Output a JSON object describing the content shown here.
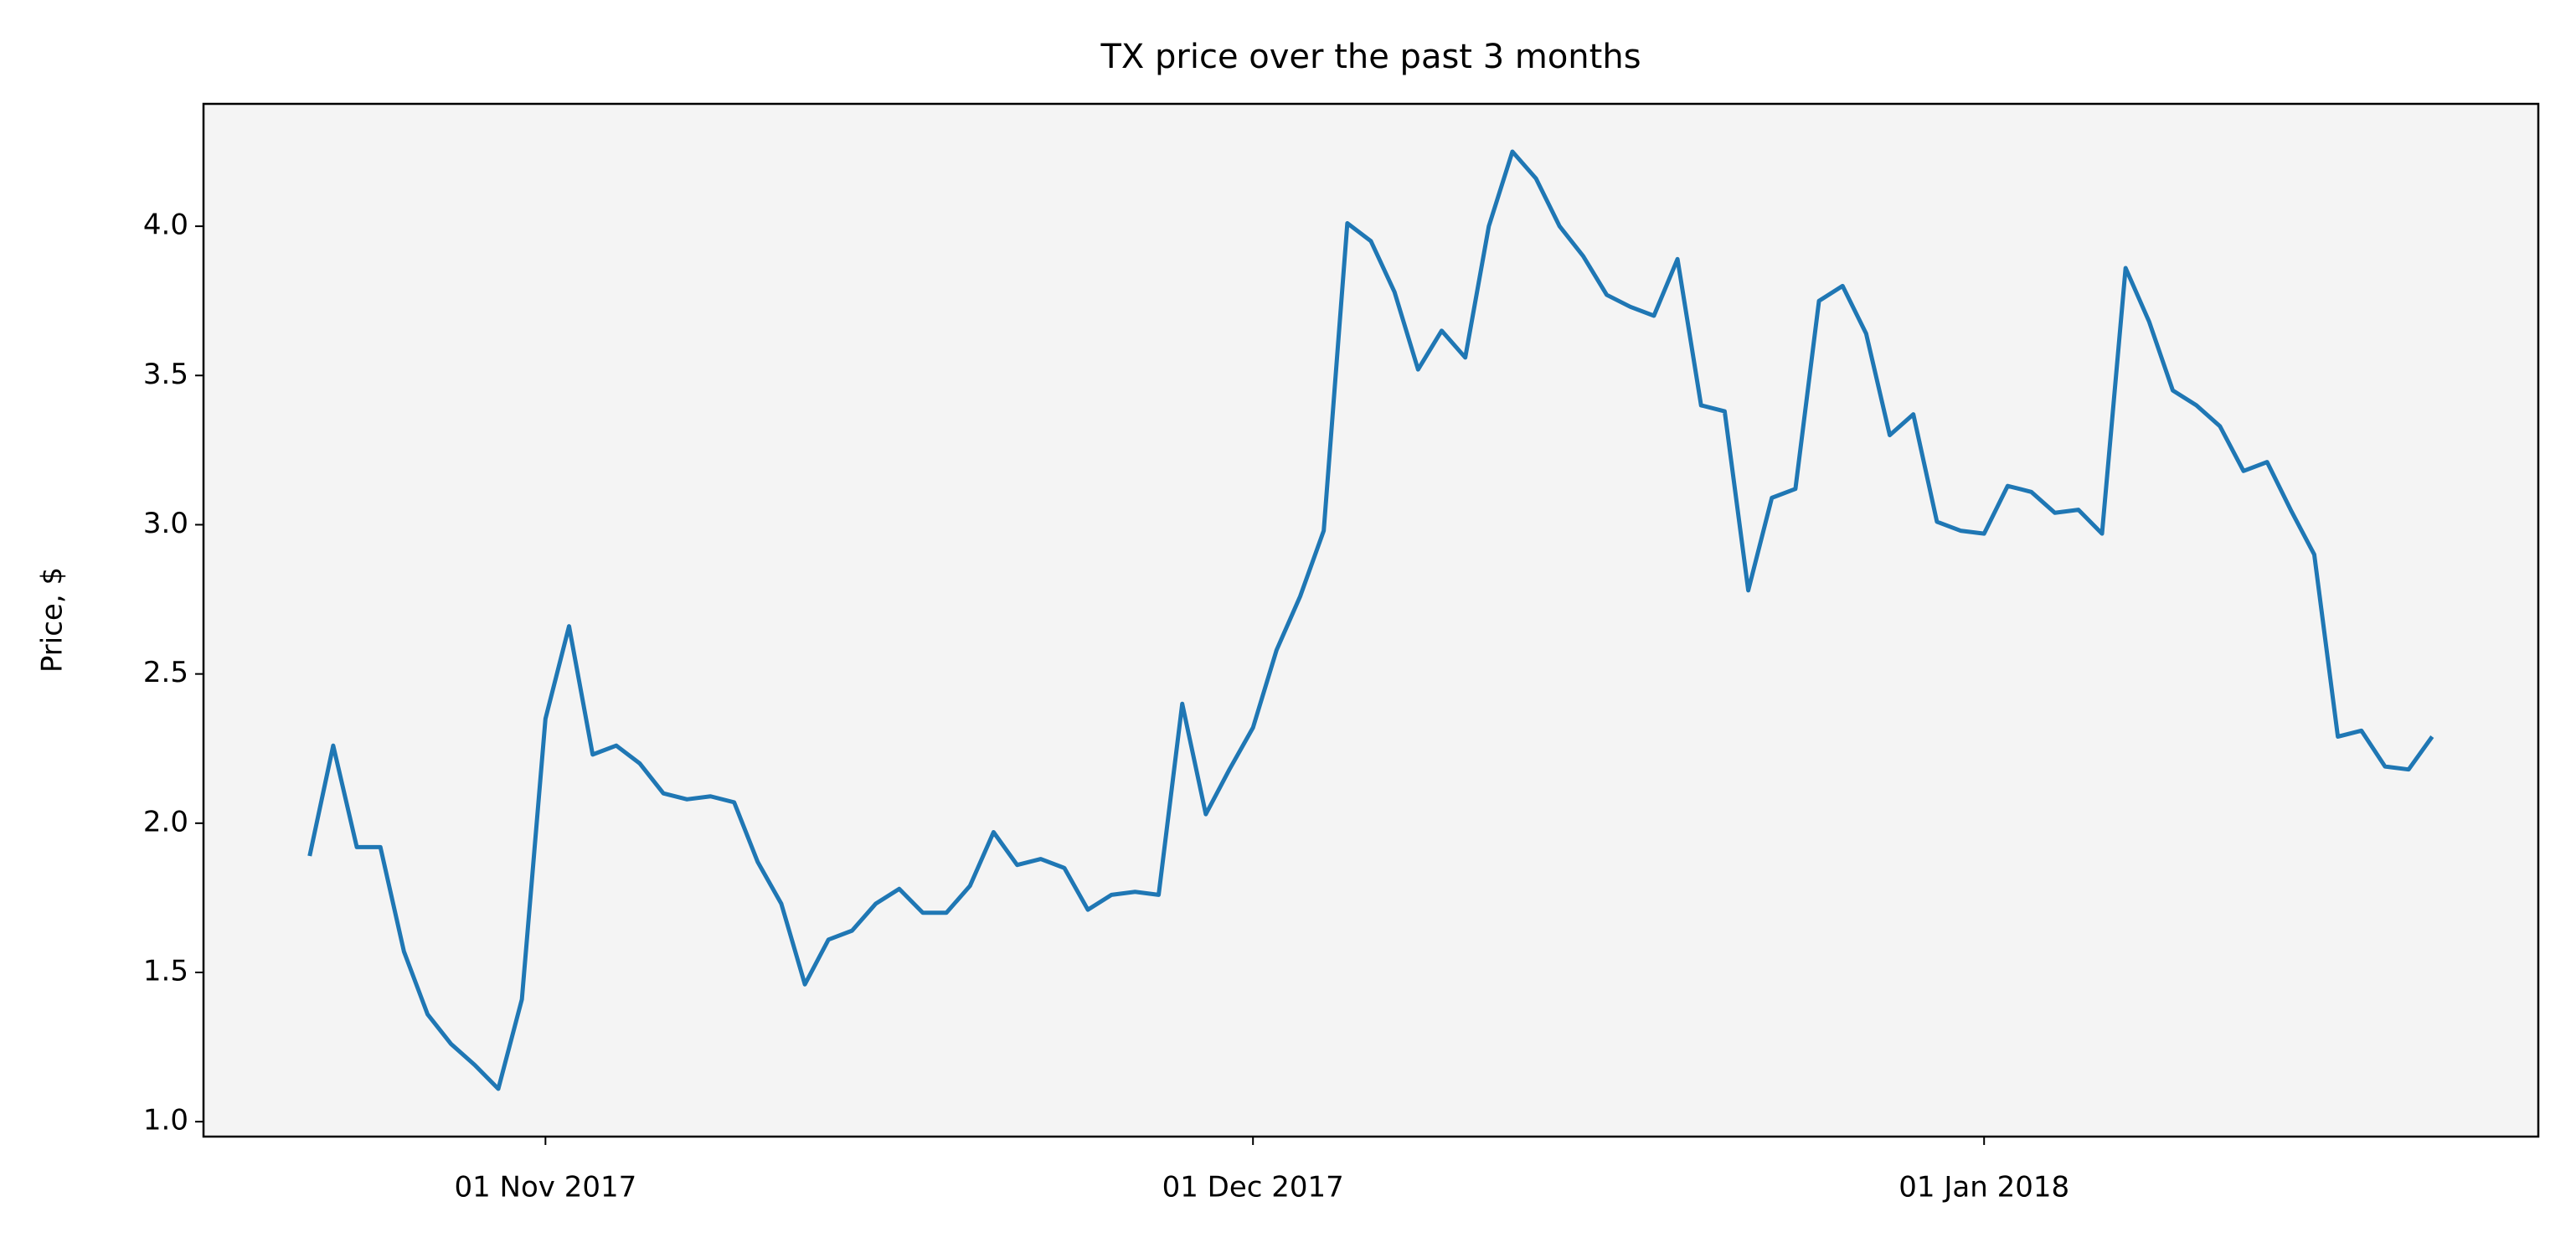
{
  "chart_data": {
    "type": "line",
    "title": "TX price over the past 3 months",
    "y_label": "Price, $",
    "x": [
      "2017-10-22",
      "2017-10-23",
      "2017-10-24",
      "2017-10-25",
      "2017-10-26",
      "2017-10-27",
      "2017-10-28",
      "2017-10-29",
      "2017-10-30",
      "2017-10-31",
      "2017-11-01",
      "2017-11-02",
      "2017-11-03",
      "2017-11-04",
      "2017-11-05",
      "2017-11-06",
      "2017-11-07",
      "2017-11-08",
      "2017-11-09",
      "2017-11-10",
      "2017-11-11",
      "2017-11-12",
      "2017-11-13",
      "2017-11-14",
      "2017-11-15",
      "2017-11-16",
      "2017-11-17",
      "2017-11-18",
      "2017-11-19",
      "2017-11-20",
      "2017-11-21",
      "2017-11-22",
      "2017-11-23",
      "2017-11-24",
      "2017-11-25",
      "2017-11-26",
      "2017-11-27",
      "2017-11-28",
      "2017-11-29",
      "2017-11-30",
      "2017-12-01",
      "2017-12-02",
      "2017-12-03",
      "2017-12-04",
      "2017-12-05",
      "2017-12-06",
      "2017-12-07",
      "2017-12-08",
      "2017-12-09",
      "2017-12-10",
      "2017-12-11",
      "2017-12-12",
      "2017-12-13",
      "2017-12-14",
      "2017-12-15",
      "2017-12-16",
      "2017-12-17",
      "2017-12-18",
      "2017-12-19",
      "2017-12-20",
      "2017-12-21",
      "2017-12-22",
      "2017-12-23",
      "2017-12-24",
      "2017-12-25",
      "2017-12-26",
      "2017-12-27",
      "2017-12-28",
      "2017-12-29",
      "2017-12-30",
      "2017-12-31",
      "2018-01-01",
      "2018-01-02",
      "2018-01-03",
      "2018-01-04",
      "2018-01-05",
      "2018-01-06",
      "2018-01-07",
      "2018-01-08",
      "2018-01-09",
      "2018-01-10",
      "2018-01-11",
      "2018-01-12",
      "2018-01-13",
      "2018-01-14",
      "2018-01-15",
      "2018-01-16",
      "2018-01-17",
      "2018-01-18",
      "2018-01-19",
      "2018-01-20"
    ],
    "series": [
      {
        "name": "TX",
        "color": "#1f77b4",
        "values": [
          1.89,
          2.26,
          1.92,
          1.92,
          1.57,
          1.36,
          1.26,
          1.19,
          1.11,
          1.41,
          2.35,
          2.66,
          2.23,
          2.26,
          2.2,
          2.1,
          2.08,
          2.09,
          2.07,
          1.87,
          1.73,
          1.46,
          1.61,
          1.64,
          1.73,
          1.78,
          1.7,
          1.7,
          1.79,
          1.97,
          1.86,
          1.88,
          1.85,
          1.71,
          1.76,
          1.77,
          1.76,
          2.4,
          2.03,
          2.18,
          2.32,
          2.58,
          2.76,
          2.98,
          4.01,
          3.95,
          3.78,
          3.52,
          3.65,
          3.56,
          4.0,
          4.25,
          4.16,
          4.0,
          3.9,
          3.77,
          3.73,
          3.7,
          3.89,
          3.4,
          3.38,
          2.78,
          3.09,
          3.12,
          3.75,
          3.8,
          3.64,
          3.3,
          3.37,
          3.01,
          2.98,
          2.97,
          3.13,
          3.11,
          3.04,
          3.05,
          2.97,
          3.86,
          3.68,
          3.45,
          3.4,
          3.33,
          3.18,
          3.21,
          3.05,
          2.9,
          2.29,
          2.31,
          2.19,
          2.18,
          2.29
        ]
      }
    ],
    "xlim": [
      "2017-10-17T12:00Z",
      "2018-01-24T12:00Z"
    ],
    "xticks": [
      {
        "value": "2017-11-01",
        "label": "01 Nov 2017"
      },
      {
        "value": "2017-12-01",
        "label": "01 Dec 2017"
      },
      {
        "value": "2018-01-01",
        "label": "01 Jan 2018"
      }
    ],
    "ylim": [
      0.95,
      4.41
    ],
    "yticks": [
      {
        "value": 1,
        "label": "1.0"
      },
      {
        "value": 1.5,
        "label": "1.5"
      },
      {
        "value": 2,
        "label": "2.0"
      },
      {
        "value": 2.5,
        "label": "2.5"
      },
      {
        "value": 3,
        "label": "3.0"
      },
      {
        "value": 3.5,
        "label": "3.5"
      },
      {
        "value": 4,
        "label": "4.0"
      }
    ],
    "grid": false,
    "background": "#f4f4f4"
  }
}
